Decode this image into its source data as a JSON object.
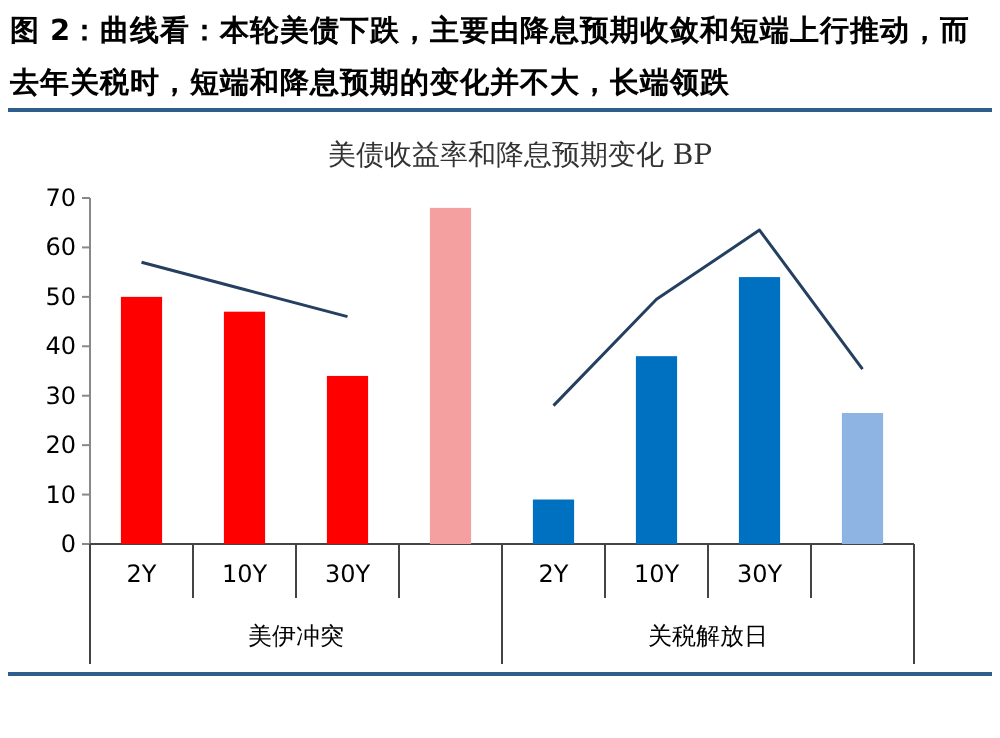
{
  "chart_data": {
    "type": "bar",
    "title": "图 2：曲线看：本轮美债下跌，主要由降息预期收敛和短端上行推动，而去年关税时，短端和降息预期的变化并不大，长端领跌",
    "subtitle": "美债收益率和降息预期变化 BP",
    "categories": [
      "2Y",
      "10Y",
      "30Y",
      null,
      "2Y",
      "10Y",
      "30Y",
      null
    ],
    "ylim": [
      0,
      70
    ],
    "yticks": [
      0,
      10,
      20,
      30,
      40,
      50,
      60,
      70
    ],
    "grid": false,
    "annotations": [
      "美伊冲突",
      "关税解放日"
    ],
    "series": [
      {
        "colors": [
          "#ff0000",
          "#ff0000",
          "#ff0000",
          "#f4a0a0",
          "#0070c0",
          "#0070c0",
          "#0070c0",
          "#8db4e2"
        ],
        "values": [
          50,
          47,
          34,
          68,
          9,
          38,
          54,
          26.5
        ]
      },
      {
        "type": "line",
        "color": "#243f60",
        "values": [
          57,
          51.5,
          46,
          null,
          null,
          null,
          null,
          null
        ]
      },
      {
        "type": "line",
        "color": "#243f60",
        "values": [
          null,
          null,
          null,
          null,
          28,
          49.5,
          63.5,
          35.4
        ]
      }
    ]
  }
}
